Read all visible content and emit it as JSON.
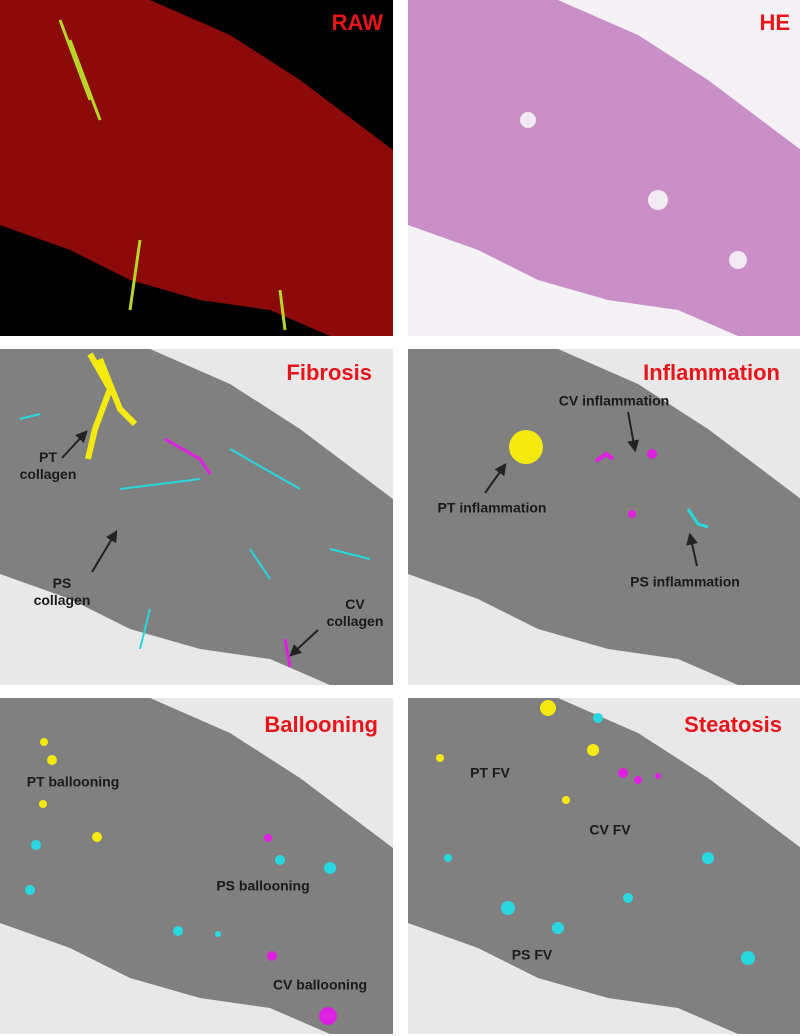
{
  "panels": [
    {
      "title": "RAW"
    },
    {
      "title": "HE"
    },
    {
      "title": "Fibrosis",
      "labels": [
        "PT collagen",
        "PS collagen",
        "CV collagen"
      ]
    },
    {
      "title": "Inflammation",
      "labels": [
        "CV inflammation",
        "PT inflammation",
        "PS inflammation"
      ]
    },
    {
      "title": "Ballooning",
      "labels": [
        "PT ballooning",
        "PS ballooning",
        "CV ballooning"
      ]
    },
    {
      "title": "Steatosis",
      "labels": [
        "PT FV",
        "CV FV",
        "PS FV"
      ]
    }
  ]
}
